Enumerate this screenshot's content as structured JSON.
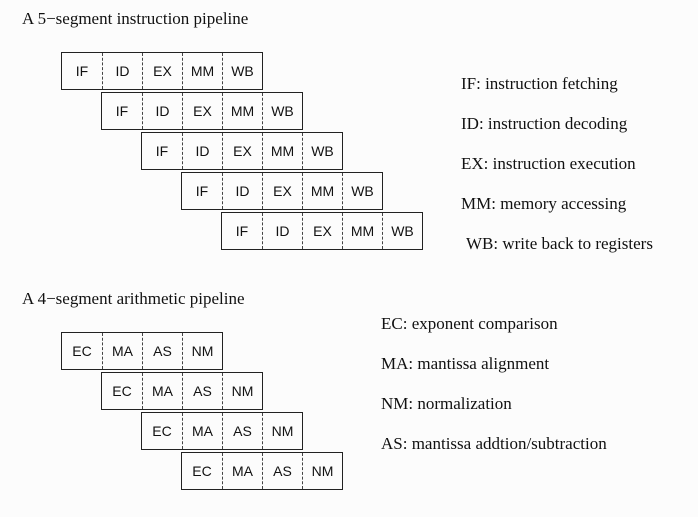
{
  "instruction": {
    "title": "A 5−segment instruction pipeline",
    "rows": [
      [
        "IF",
        "ID",
        "EX",
        "MM",
        "WB"
      ],
      [
        "IF",
        "ID",
        "EX",
        "MM",
        "WB"
      ],
      [
        "IF",
        "ID",
        "EX",
        "MM",
        "WB"
      ],
      [
        "IF",
        "ID",
        "EX",
        "MM",
        "WB"
      ],
      [
        "IF",
        "ID",
        "EX",
        "MM",
        "WB"
      ]
    ],
    "legend": [
      "IF: instruction fetching",
      "ID: instruction decoding",
      "EX: instruction execution",
      "MM: memory accessing",
      "WB: write back to registers"
    ]
  },
  "arithmetic": {
    "title": "A 4−segment arithmetic pipeline",
    "rows": [
      [
        "EC",
        "MA",
        "AS",
        "NM"
      ],
      [
        "EC",
        "MA",
        "AS",
        "NM"
      ],
      [
        "EC",
        "MA",
        "AS",
        "NM"
      ],
      [
        "EC",
        "MA",
        "AS",
        "NM"
      ]
    ],
    "legend": [
      "EC: exponent comparison",
      "MA: mantissa alignment",
      "NM: normalization",
      "AS: mantissa addtion/subtraction"
    ]
  }
}
